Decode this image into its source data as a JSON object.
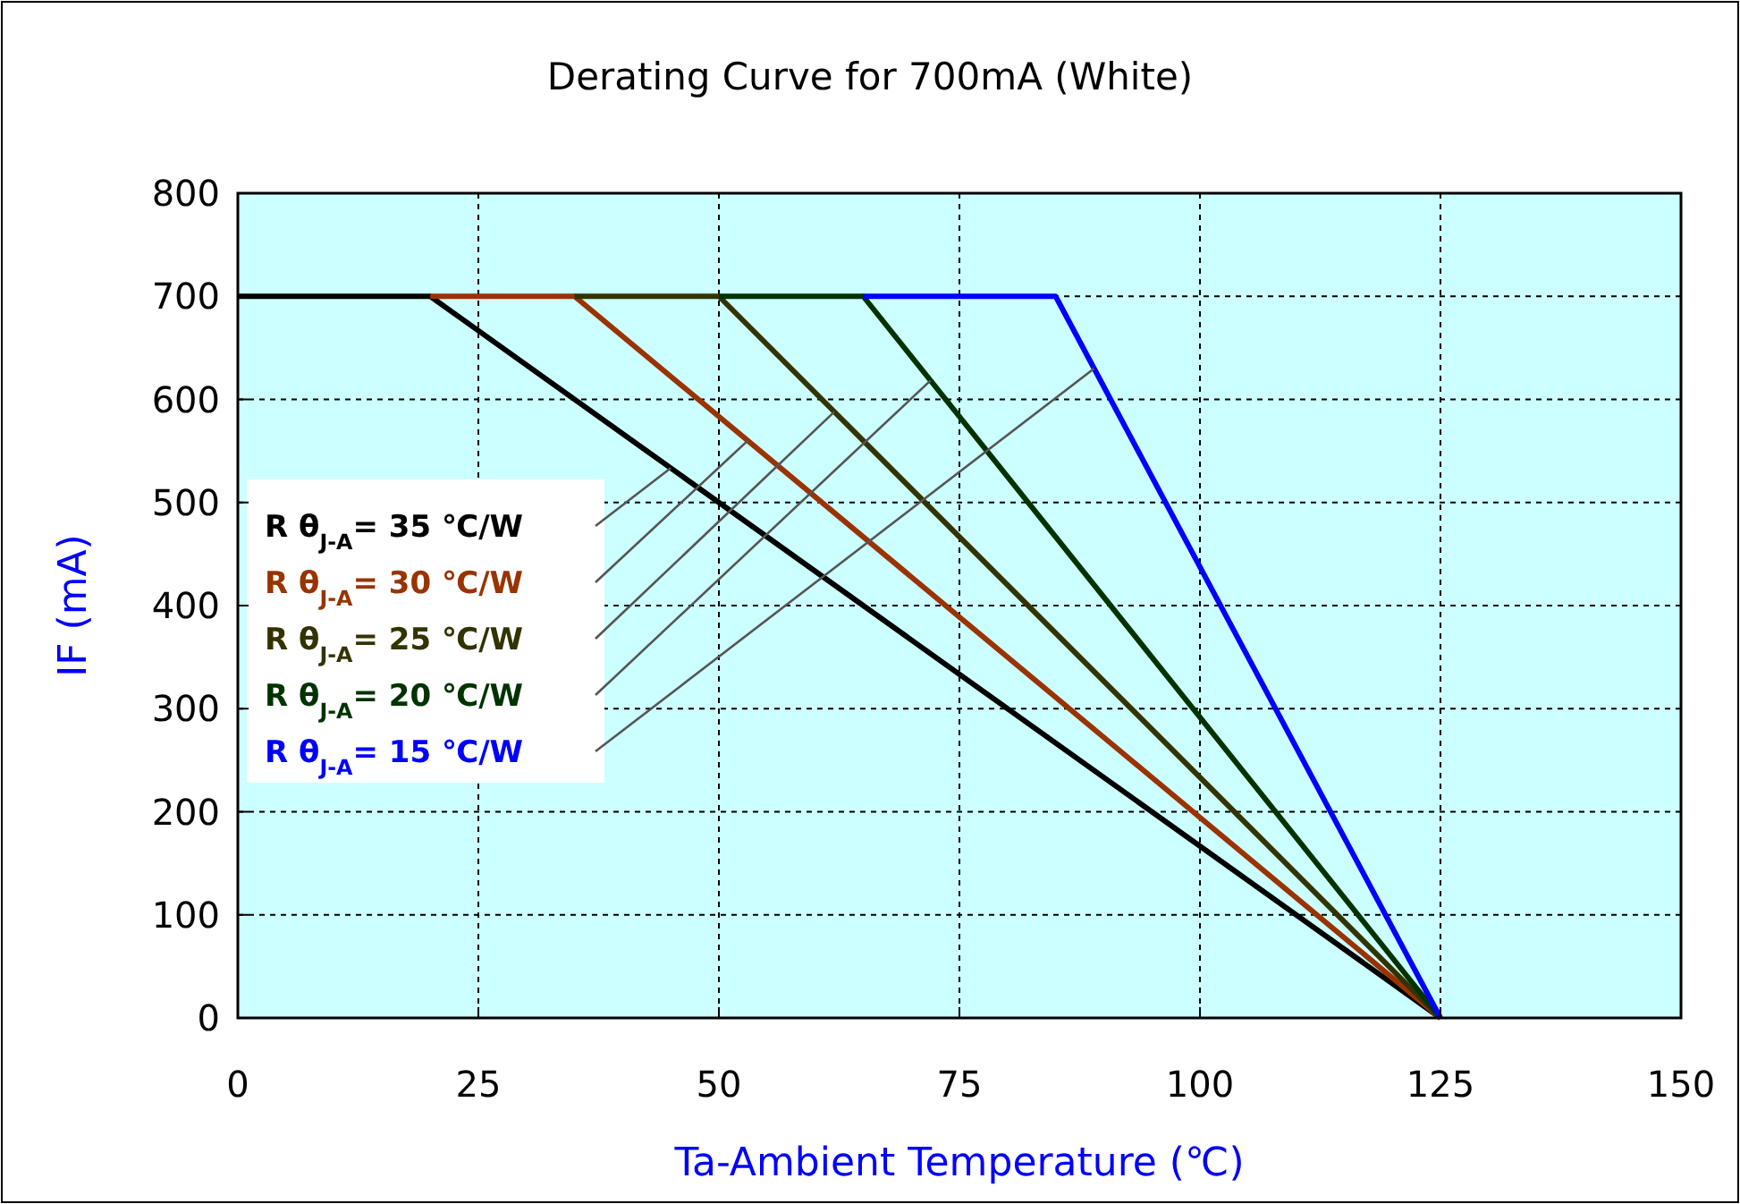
{
  "chart_data": {
    "type": "line",
    "title": "Derating Curve for 700mA (White)",
    "xlabel": "Ta-Ambient Temperature (℃)",
    "ylabel": "IF (mA)",
    "xlim": [
      0,
      150
    ],
    "xticks": [
      0,
      25,
      50,
      75,
      100,
      125,
      150
    ],
    "ylim": [
      0,
      800
    ],
    "yticks": [
      0,
      100,
      200,
      300,
      400,
      500,
      600,
      700,
      800
    ],
    "grid": true,
    "legend": "left",
    "marker": "none",
    "line_style": "solid",
    "series": [
      {
        "name": "R θ$_{J-A}$= 35 ℃/W",
        "color": "#000000",
        "x": [
          0,
          20,
          125
        ],
        "values": [
          700,
          700,
          0
        ]
      },
      {
        "name": "R θ$_{J-A}$= 30 ℃/W",
        "color": "#993300",
        "x": [
          20,
          35,
          125
        ],
        "values": [
          700,
          700,
          0
        ]
      },
      {
        "name": "R θ$_{J-A}$= 25 ℃/W",
        "color": "#333300",
        "x": [
          35,
          50,
          125
        ],
        "values": [
          700,
          700,
          0
        ]
      },
      {
        "name": "R θ$_{J-A}$= 20 ℃/W",
        "color": "#003300",
        "x": [
          50,
          65,
          125
        ],
        "values": [
          700,
          700,
          0
        ]
      },
      {
        "name": "R θ$_{J-A}$= 15 ℃/W",
        "color": "#0000ff",
        "x": [
          65,
          85,
          125
        ],
        "values": [
          700,
          700,
          0
        ]
      }
    ]
  }
}
